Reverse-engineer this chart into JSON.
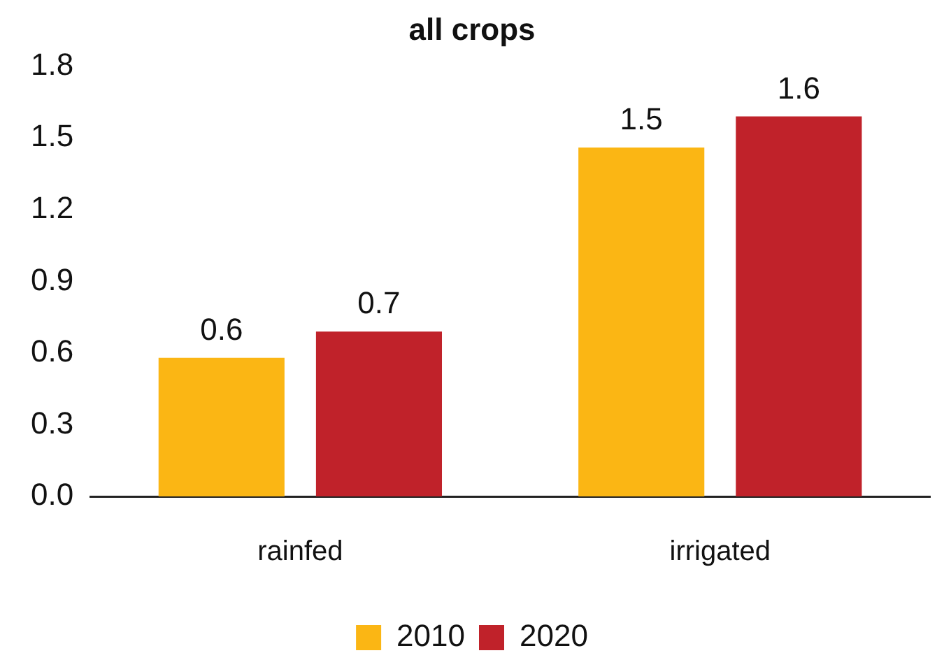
{
  "chart_data": {
    "type": "bar",
    "title": "all crops",
    "categories": [
      "rainfed",
      "irrigated"
    ],
    "series": [
      {
        "name": "2010",
        "color": "#fbb614",
        "values": [
          0.58,
          1.46
        ],
        "value_labels": [
          "0.6",
          "1.5"
        ]
      },
      {
        "name": "2020",
        "color": "#c0222a",
        "values": [
          0.69,
          1.59
        ],
        "value_labels": [
          "0.7",
          "1.6"
        ]
      }
    ],
    "ylim": [
      0,
      1.8
    ],
    "yticks": [
      {
        "value": 0,
        "label": "0.0"
      },
      {
        "value": 0.3,
        "label": "0.3"
      },
      {
        "value": 0.6,
        "label": "0.6"
      },
      {
        "value": 0.9,
        "label": "0.9"
      },
      {
        "value": 1.2,
        "label": "1.2"
      },
      {
        "value": 1.5,
        "label": "1.5"
      },
      {
        "value": 1.8,
        "label": "1.8"
      }
    ],
    "grid": false,
    "legend": "bottom"
  }
}
